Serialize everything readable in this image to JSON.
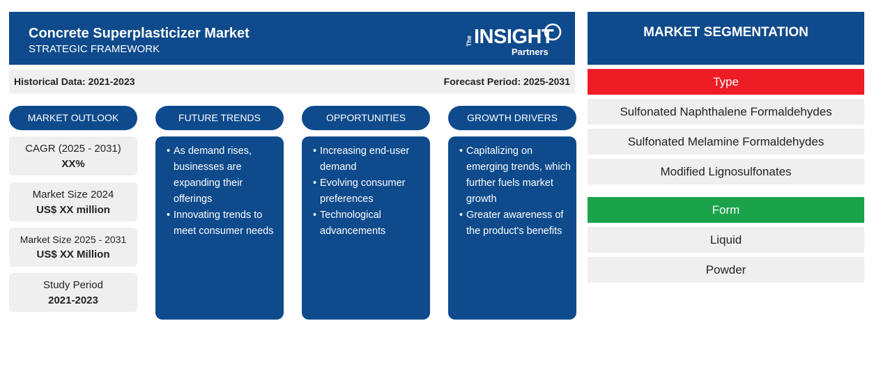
{
  "header": {
    "title": "Concrete Superplasticizer Market",
    "subtitle": "STRATEGIC FRAMEWORK",
    "logo": {
      "the": "The",
      "word": "INSIGHT",
      "partners": "Partners"
    }
  },
  "period": {
    "historical": "Historical Data: 2021-2023",
    "forecast": "Forecast Period: 2025-2031"
  },
  "columns": {
    "outlook": "MARKET OUTLOOK",
    "trends": "FUTURE TRENDS",
    "opportunities": "OPPORTUNITIES",
    "drivers": "GROWTH DRIVERS"
  },
  "outlook": [
    {
      "label": "CAGR (2025 - 2031)",
      "value": "XX%"
    },
    {
      "label": "Market Size 2024",
      "value": "US$ XX million"
    },
    {
      "label": "Market Size 2025 - 2031",
      "value": "US$ XX Million"
    },
    {
      "label": "Study Period",
      "value": "2021-2023"
    }
  ],
  "trends": [
    "As demand rises, businesses are expanding their offerings",
    "Innovating trends to meet consumer needs"
  ],
  "opportunities": [
    "Increasing end-user demand",
    "Evolving consumer preferences",
    "Technological advancements"
  ],
  "drivers": [
    "Capitalizing on emerging trends, which further fuels market growth",
    "Greater awareness of the product's benefits"
  ],
  "segmentation": {
    "title": "MARKET SEGMENTATION",
    "type": {
      "label": "Type",
      "color": "#ee1c25",
      "items": [
        "Sulfonated Naphthalene Formaldehydes",
        "Sulfonated Melamine Formaldehydes",
        "Modified Lignosulfonates"
      ]
    },
    "form": {
      "label": "Form",
      "color": "#1aa34a",
      "items": [
        "Liquid",
        "Powder"
      ]
    }
  },
  "colors": {
    "primary": "#0e4a8c",
    "light": "#efefef"
  }
}
